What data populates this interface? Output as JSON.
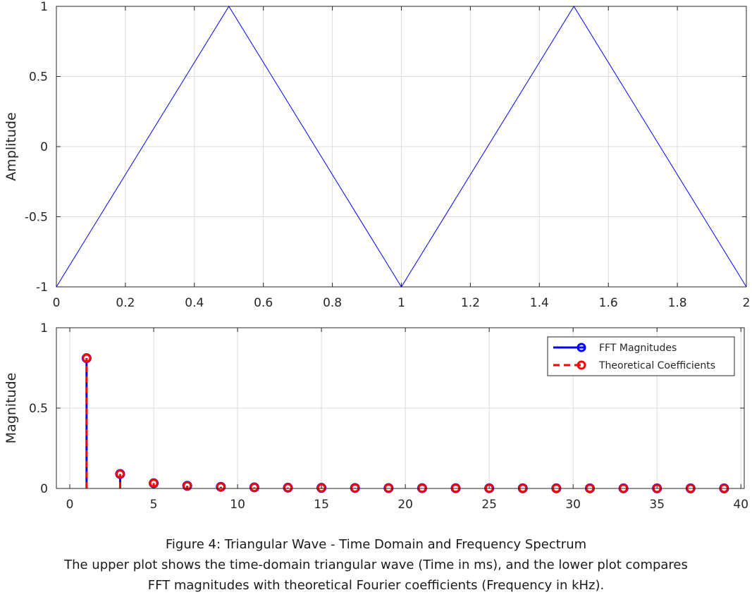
{
  "chart_data": [
    {
      "type": "line",
      "title": "",
      "xlabel": "",
      "ylabel": "Amplitude",
      "xlim": [
        0,
        2
      ],
      "ylim": [
        -1,
        1
      ],
      "grid": true,
      "xticks": [
        "0",
        "0.2",
        "0.4",
        "0.6",
        "0.8",
        "1",
        "1.2",
        "1.4",
        "1.6",
        "1.8",
        "2"
      ],
      "yticks": [
        "-1",
        "-0.5",
        "0",
        "0.5",
        "1"
      ],
      "series": [
        {
          "color": "#0000ff",
          "x": [
            0,
            0.5,
            1,
            1.5,
            2
          ],
          "y": [
            -1,
            1,
            -1,
            1,
            -1
          ]
        }
      ]
    },
    {
      "type": "stem",
      "title": "",
      "xlabel": "",
      "ylabel": "Magnitude",
      "xlim": [
        -0.8,
        40.2
      ],
      "ylim": [
        0,
        1
      ],
      "grid": true,
      "legend_position": "top-right",
      "xticks": [
        "0",
        "5",
        "10",
        "15",
        "20",
        "25",
        "30",
        "35",
        "40"
      ],
      "yticks": [
        "0",
        "0.5",
        "1"
      ],
      "x": [
        1,
        3,
        5,
        7,
        9,
        11,
        13,
        15,
        17,
        19,
        21,
        23,
        25,
        27,
        29,
        31,
        33,
        35,
        37,
        39
      ],
      "series": [
        {
          "name": "FFT Magnitudes",
          "color": "#0000ff",
          "line_style": "solid",
          "values": [
            0.8106,
            0.0901,
            0.0324,
            0.0165,
            0.01,
            0.0067,
            0.0048,
            0.0036,
            0.0028,
            0.0022,
            0.0018,
            0.0015,
            0.0013,
            0.0011,
            0.001,
            0.0008,
            0.0007,
            0.0007,
            0.0006,
            0.0005
          ]
        },
        {
          "name": "Theoretical Coefficients",
          "color": "#ff0000",
          "line_style": "dashed",
          "values": [
            0.8106,
            0.0901,
            0.0324,
            0.0165,
            0.01,
            0.0067,
            0.0048,
            0.0036,
            0.0028,
            0.0022,
            0.0018,
            0.0015,
            0.0013,
            0.0011,
            0.001,
            0.0008,
            0.0007,
            0.0007,
            0.0006,
            0.0005
          ]
        }
      ]
    }
  ],
  "caption": {
    "line1": "Figure 4: Triangular Wave - Time Domain and Frequency Spectrum",
    "line2": "The upper plot shows the time-domain triangular wave (Time in ms), and the lower plot compares",
    "line3": "FFT magnitudes with theoretical Fourier coefficients (Frequency in kHz)."
  }
}
